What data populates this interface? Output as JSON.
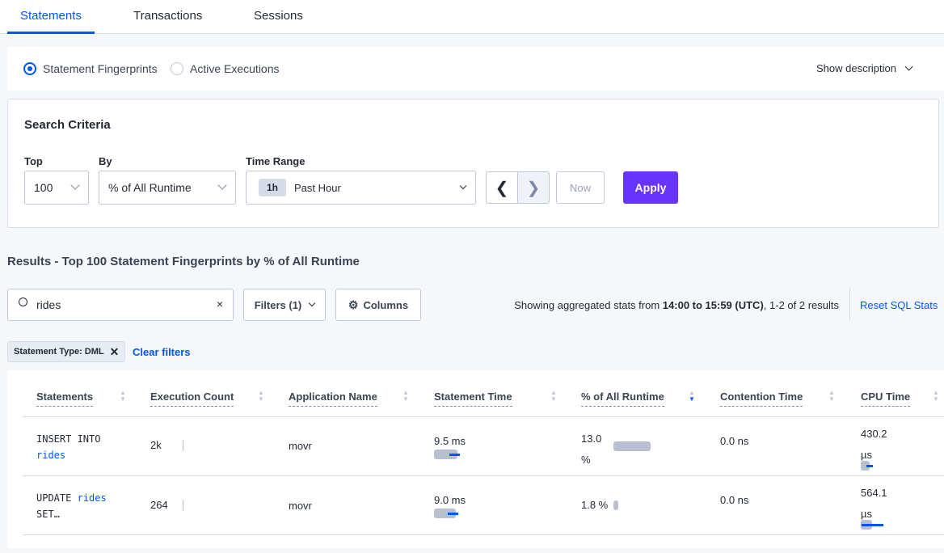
{
  "tabs": [
    "Statements",
    "Transactions",
    "Sessions"
  ],
  "view": {
    "options": [
      "Statement Fingerprints",
      "Active Executions"
    ],
    "selected": "Statement Fingerprints",
    "show_description": "Show description"
  },
  "search_criteria": {
    "title": "Search Criteria",
    "top_label": "Top",
    "top_value": "100",
    "by_label": "By",
    "by_value": "% of All Runtime",
    "time_label": "Time Range",
    "time_badge": "1h",
    "time_value": "Past Hour",
    "now": "Now",
    "apply": "Apply"
  },
  "results": {
    "title": "Results - Top 100 Statement Fingerprints by % of All Runtime",
    "search_value": "rides",
    "filters": "Filters (1)",
    "columns": "Columns",
    "stats_prefix": "Showing aggregated stats from ",
    "stats_range": "14:00 to 15:59 (UTC)",
    "stats_suffix": ", 1-2 of 2 results",
    "reset": "Reset SQL Stats",
    "chip": "Statement Type: DML",
    "clear": "Clear filters"
  },
  "table": {
    "headers": [
      "Statements",
      "Execution Count",
      "Application Name",
      "Statement Time",
      "% of All Runtime",
      "Contention Time",
      "CPU Time"
    ],
    "sorted_column": "% of All Runtime",
    "sort_dir": "desc",
    "rows": [
      {
        "stmt_a": "INSERT INTO",
        "stmt_b": "rides",
        "exec": "2k",
        "app": "movr",
        "stmt_time": "9.5 ms",
        "pct_a": "13.0",
        "pct_b": "%",
        "pct_value": 13.0,
        "contention": "0.0 ns",
        "cpu_a": "430.2",
        "cpu_b": "µs"
      },
      {
        "stmt_a": "UPDATE",
        "stmt_b": "rides",
        "stmt_c": "SET…",
        "exec": "264",
        "app": "movr",
        "stmt_time": "9.0 ms",
        "pct_a": "1.8 %",
        "pct_value": 1.8,
        "contention": "0.0 ns",
        "cpu_a": "564.1",
        "cpu_b": "µs"
      }
    ]
  },
  "colors": {
    "accent": "#0055ff",
    "apply": "#6933ff"
  }
}
